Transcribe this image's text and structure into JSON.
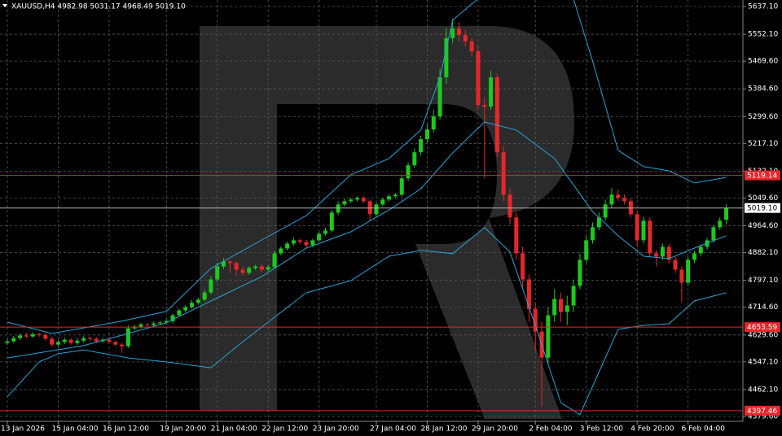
{
  "chart_data": {
    "type": "candlestick",
    "title": "XAUUSD,H4  4982.98 5031.17 4968.49 5019.10",
    "categories": [
      "13 Jan 2026",
      null,
      null,
      null,
      null,
      null,
      null,
      null,
      "15 Jan 04:00",
      null,
      null,
      null,
      null,
      null,
      null,
      null,
      "16 Jan 12:00",
      null,
      null,
      null,
      null,
      null,
      null,
      null,
      null,
      "19 Jan 20:00",
      null,
      null,
      null,
      null,
      null,
      null,
      null,
      "21 Jan 04:00",
      null,
      null,
      null,
      null,
      null,
      null,
      null,
      "22 Jan 12:00",
      null,
      null,
      null,
      null,
      null,
      null,
      null,
      "23 Jan 20:00",
      null,
      null,
      null,
      null,
      null,
      null,
      null,
      null,
      "27 Jan 04:00",
      null,
      null,
      null,
      null,
      null,
      null,
      null,
      "28 Jan 12:00",
      null,
      null,
      null,
      null,
      null,
      null,
      null,
      "29 Jan 20:00",
      null,
      null,
      null,
      null,
      null,
      null,
      null,
      null,
      "2 Feb 04:00",
      null,
      null,
      null,
      null,
      null,
      null,
      null,
      "3 Feb 12:00",
      null,
      null,
      null,
      null,
      null,
      null,
      null,
      "4 Feb 20:00",
      null,
      null,
      null,
      null,
      null,
      null,
      null,
      "6 Feb 04:00",
      null,
      null,
      null,
      null,
      null,
      null
    ],
    "open": [
      4605,
      4610,
      4620,
      4628,
      4625,
      4632,
      4630,
      4618,
      4600,
      4608,
      4615,
      4605,
      4612,
      4620,
      4618,
      4610,
      4615,
      4608,
      4600,
      4595,
      4650,
      4655,
      4662,
      4660,
      4665,
      4668,
      4672,
      4690,
      4705,
      4715,
      4728,
      4738,
      4760,
      4800,
      4840,
      4855,
      4850,
      4830,
      4820,
      4835,
      4840,
      4830,
      4838,
      4880,
      4895,
      4910,
      4920,
      4915,
      4905,
      4920,
      4940,
      4950,
      5005,
      5030,
      5040,
      5045,
      5050,
      5040,
      5000,
      5030,
      5045,
      5055,
      5060,
      5110,
      5150,
      5190,
      5230,
      5260,
      5300,
      5420,
      5540,
      5570,
      5550,
      5530,
      5500,
      5335,
      5330,
      5420,
      5190,
      5060,
      4990,
      4880,
      4800,
      4710,
      4640,
      4560,
      4690,
      4740,
      4700,
      4720,
      4780,
      4860,
      4920,
      4960,
      4990,
      5030,
      5060,
      5050,
      5040,
      5000,
      4920,
      4980,
      4880,
      4870,
      4900,
      4860,
      4830,
      4790,
      4860,
      4880,
      4900,
      4920,
      4960,
      4982.98
    ],
    "high": [
      4618,
      4627,
      4634,
      4636,
      4638,
      4637,
      4636,
      4623,
      4614,
      4622,
      4620,
      4620,
      4626,
      4625,
      4622,
      4621,
      4620,
      4612,
      4605,
      4658,
      4661,
      4667,
      4666,
      4671,
      4673,
      4678,
      4695,
      4711,
      4720,
      4736,
      4744,
      4768,
      4810,
      4852,
      4865,
      4861,
      4855,
      4838,
      4841,
      4845,
      4846,
      4843,
      4888,
      4901,
      4916,
      4928,
      4925,
      4921,
      4925,
      4946,
      4958,
      5013,
      5040,
      5048,
      5051,
      5055,
      5056,
      5045,
      5036,
      5050,
      5061,
      5065,
      5118,
      5160,
      5202,
      5240,
      5275,
      5320,
      5445,
      5570,
      5600,
      5590,
      5565,
      5540,
      5515,
      5355,
      5440,
      5430,
      5210,
      5080,
      5005,
      4900,
      4815,
      4730,
      4670,
      4715,
      4770,
      4760,
      4750,
      4800,
      4880,
      4935,
      4975,
      5005,
      5045,
      5080,
      5075,
      5060,
      5050,
      5010,
      4992,
      4990,
      4890,
      4910,
      4908,
      4870,
      4840,
      4870,
      4888,
      4908,
      4928,
      4968,
      4990,
      5031.17
    ],
    "low": [
      4599,
      4605,
      4614,
      4620,
      4621,
      4624,
      4613,
      4594,
      4595,
      4602,
      4600,
      4599,
      4607,
      4612,
      4605,
      4606,
      4602,
      4595,
      4575,
      4590,
      4644,
      4650,
      4654,
      4655,
      4659,
      4663,
      4666,
      4685,
      4699,
      4710,
      4722,
      4733,
      4754,
      4792,
      4832,
      4820,
      4810,
      4812,
      4814,
      4829,
      4822,
      4824,
      4832,
      4874,
      4889,
      4904,
      4909,
      4897,
      4899,
      4914,
      4934,
      4944,
      4997,
      5024,
      5034,
      5039,
      5034,
      4980,
      4994,
      5024,
      5039,
      5049,
      5054,
      5102,
      5142,
      5180,
      5220,
      5250,
      5290,
      5400,
      5525,
      5530,
      5515,
      5485,
      5320,
      5110,
      5320,
      5175,
      5040,
      4970,
      4860,
      4770,
      4670,
      4580,
      4410,
      4540,
      4670,
      4670,
      4660,
      4700,
      4770,
      4850,
      4910,
      4950,
      4980,
      5020,
      5040,
      5030,
      4990,
      4900,
      4910,
      4870,
      4840,
      4860,
      4850,
      4820,
      4730,
      4780,
      4850,
      4872,
      4892,
      4912,
      4952,
      4968.49
    ],
    "close": [
      4610,
      4620,
      4628,
      4625,
      4632,
      4630,
      4618,
      4600,
      4608,
      4615,
      4605,
      4612,
      4620,
      4618,
      4610,
      4615,
      4608,
      4600,
      4595,
      4650,
      4655,
      4662,
      4660,
      4665,
      4668,
      4672,
      4690,
      4705,
      4715,
      4728,
      4738,
      4760,
      4800,
      4840,
      4855,
      4850,
      4830,
      4820,
      4835,
      4840,
      4830,
      4838,
      4880,
      4895,
      4910,
      4920,
      4915,
      4905,
      4920,
      4940,
      4950,
      5005,
      5030,
      5040,
      5045,
      5050,
      5040,
      5000,
      5030,
      5045,
      5055,
      5060,
      5110,
      5150,
      5190,
      5230,
      5260,
      5300,
      5420,
      5540,
      5570,
      5550,
      5530,
      5500,
      5335,
      5330,
      5420,
      5190,
      5060,
      4990,
      4880,
      4800,
      4710,
      4640,
      4560,
      4690,
      4740,
      4700,
      4720,
      4780,
      4860,
      4920,
      4960,
      4990,
      5030,
      5060,
      5050,
      5040,
      5000,
      4920,
      4980,
      4880,
      4870,
      4900,
      4860,
      4830,
      4790,
      4860,
      4880,
      4900,
      4920,
      4960,
      4980,
      5019.1
    ],
    "up_color": "#1ec81e",
    "down_color": "#e8262a",
    "ylim": [
      4364.6,
      5657.1
    ],
    "yticks": [
      {
        "value": 5637.1,
        "label": "5637.10"
      },
      {
        "value": 5552.1,
        "label": "5552.10"
      },
      {
        "value": 5469.6,
        "label": "5469.60"
      },
      {
        "value": 5384.6,
        "label": "5384.60"
      },
      {
        "value": 5299.6,
        "label": "5299.60"
      },
      {
        "value": 5217.1,
        "label": "5217.10"
      },
      {
        "value": 5132.1,
        "label": "5132.10"
      },
      {
        "value": 5049.6,
        "label": "5049.60"
      },
      {
        "value": 4964.6,
        "label": "4964.60"
      },
      {
        "value": 4882.1,
        "label": "4882.10"
      },
      {
        "value": 4797.1,
        "label": "4797.10"
      },
      {
        "value": 4714.6,
        "label": "4714.60"
      },
      {
        "value": 4629.6,
        "label": "4629.60"
      },
      {
        "value": 4547.1,
        "label": "4547.10"
      },
      {
        "value": 4462.1,
        "label": "4462.10"
      },
      {
        "value": 4379.6,
        "label": "4379.60"
      }
    ],
    "grid": true,
    "overlays": [
      {
        "color": "#29a3d6",
        "x": [
          0,
          7,
          18,
          25,
          32,
          40,
          47,
          54,
          60,
          65,
          68,
          70,
          73,
          76,
          80,
          86,
          89,
          92,
          96,
          100,
          104,
          108,
          113
        ],
        "values": [
          4669,
          4634,
          4672,
          4702,
          4834,
          4921,
          4996,
          5121,
          5171,
          5258,
          5420,
          5595,
          5645,
          5690,
          5720,
          5700,
          5660,
          5470,
          5196,
          5146,
          5133,
          5096,
          5113
        ]
      },
      {
        "color": "#29a3d6",
        "x": [
          0,
          12,
          19,
          25,
          32,
          40,
          47,
          54,
          60,
          65,
          70,
          75,
          80,
          86,
          92,
          96,
          100,
          104,
          108,
          113
        ],
        "values": [
          4559,
          4597,
          4634,
          4667,
          4734,
          4809,
          4896,
          4946,
          5013,
          5078,
          5188,
          5283,
          5258,
          5171,
          5008,
          4934,
          4871,
          4864,
          4896,
          4934
        ]
      },
      {
        "color": "#29a3d6",
        "x": [
          0,
          5,
          8,
          12,
          19,
          25,
          32,
          37,
          42,
          47,
          54,
          60,
          65,
          70,
          75,
          79,
          83,
          87,
          90,
          92,
          96,
          100,
          104,
          108,
          113
        ],
        "values": [
          4440,
          4547,
          4572,
          4584,
          4559,
          4547,
          4529,
          4609,
          4684,
          4759,
          4796,
          4871,
          4889,
          4879,
          4959,
          4884,
          4659,
          4422,
          4385,
          4472,
          4647,
          4659,
          4664,
          4734,
          4759
        ]
      }
    ],
    "levels": [
      {
        "value": 5119.14,
        "color": "#e8262a"
      },
      {
        "value": 4653.59,
        "color": "#e8262a"
      },
      {
        "value": 4397.46,
        "color": "#e8262a"
      },
      {
        "value": 5019.1,
        "label": "5019.10",
        "color": "#b4b4b4"
      }
    ]
  }
}
